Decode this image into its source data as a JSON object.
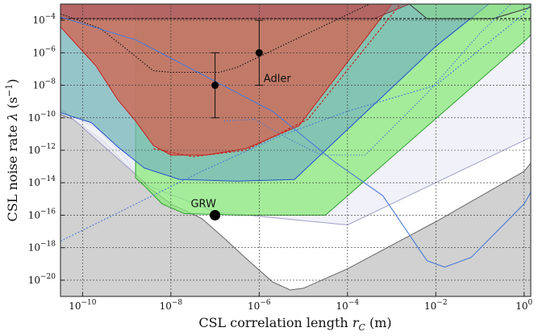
{
  "chart_data": {
    "type": "area",
    "xlabel": "CSL correlation length",
    "xlabel_symbol": "r",
    "xlabel_subscript": "C",
    "xlabel_unit": "(m)",
    "ylabel": "CSL noise rate",
    "ylabel_symbol": "λ",
    "ylabel_unit": "(s",
    "ylabel_unit_exp": "−1",
    "ylabel_unit_close": ")",
    "x_scale": "log",
    "y_scale": "log",
    "xlim_log10": [
      -10.5,
      0.15
    ],
    "ylim_log10": [
      -21,
      -3
    ],
    "x_ticks": [
      {
        "base": "10",
        "exp": "−10",
        "log": -10
      },
      {
        "base": "10",
        "exp": "−8",
        "log": -8
      },
      {
        "base": "10",
        "exp": "−6",
        "log": -6
      },
      {
        "base": "10",
        "exp": "−4",
        "log": -4
      },
      {
        "base": "10",
        "exp": "−2",
        "log": -2
      },
      {
        "base": "10",
        "exp": "0",
        "log": 0
      }
    ],
    "y_ticks": [
      {
        "base": "10",
        "exp": "−4",
        "log": -4
      },
      {
        "base": "10",
        "exp": "−6",
        "log": -6
      },
      {
        "base": "10",
        "exp": "−8",
        "log": -8
      },
      {
        "base": "10",
        "exp": "−10",
        "log": -10
      },
      {
        "base": "10",
        "exp": "−12",
        "log": -12
      },
      {
        "base": "10",
        "exp": "−14",
        "log": -14
      },
      {
        "base": "10",
        "exp": "−16",
        "log": -16
      },
      {
        "base": "10",
        "exp": "−18",
        "log": -18
      },
      {
        "base": "10",
        "exp": "−20",
        "log": -20
      }
    ],
    "grid": true,
    "regions": [
      {
        "id": "theory-excluded-gray",
        "fill": "#c9c9c9",
        "opacity": 0.85,
        "stroke": "#666666",
        "points": [
          [
            -10.5,
            -21
          ],
          [
            -10.5,
            -9.8
          ],
          [
            -10.2,
            -10.1
          ],
          [
            -9.5,
            -11.5
          ],
          [
            -9,
            -12.9
          ],
          [
            -8.5,
            -14.3
          ],
          [
            -8,
            -15.3
          ],
          [
            -7.3,
            -16.2
          ],
          [
            -6.8,
            -17.4
          ],
          [
            -6.2,
            -18.9
          ],
          [
            -5.7,
            -20.1
          ],
          [
            -5.3,
            -20.6
          ],
          [
            -5,
            -20.5
          ],
          [
            -4,
            -19.3
          ],
          [
            -2,
            -16.4
          ],
          [
            0,
            -13.3
          ],
          [
            0.15,
            -12.8
          ],
          [
            0.15,
            -21
          ]
        ]
      },
      {
        "id": "bound-steelblue-left",
        "fill": "#b9c9df",
        "opacity": 0.55,
        "stroke": "#6a8fc0",
        "points": [
          [
            -10.5,
            -3
          ],
          [
            -10.5,
            -9.6
          ],
          [
            -9.7,
            -10.6
          ],
          [
            -9,
            -12.6
          ],
          [
            -8.8,
            -13.4
          ],
          [
            -8.8,
            -3
          ]
        ]
      },
      {
        "id": "bound-lavender",
        "fill": "#eeeef8",
        "opacity": 0.85,
        "stroke": "#a0a0c8",
        "points": [
          [
            -10.5,
            -3
          ],
          [
            -10.5,
            -9.4
          ],
          [
            -8.5,
            -14.2
          ],
          [
            -7,
            -15.8
          ],
          [
            -4,
            -16.6
          ],
          [
            0.15,
            -11.2
          ],
          [
            0.15,
            -3
          ]
        ]
      },
      {
        "id": "bound-green",
        "fill": "#8aea7a",
        "opacity": 0.75,
        "stroke": "#2ca02c",
        "points": [
          [
            -8.8,
            -3
          ],
          [
            -8.8,
            -13.7
          ],
          [
            -8.6,
            -14.2
          ],
          [
            -8.2,
            -15.3
          ],
          [
            -7.7,
            -15.9
          ],
          [
            -6.5,
            -16.0
          ],
          [
            -4.5,
            -16.0
          ],
          [
            0,
            -5.3
          ],
          [
            0.15,
            -4.9
          ],
          [
            0.15,
            -3
          ]
        ]
      },
      {
        "id": "bound-teal",
        "fill": "#7ab7b9",
        "opacity": 0.75,
        "stroke": "#1f4fd1",
        "points": [
          [
            -10.5,
            -3
          ],
          [
            -10.5,
            -9.7
          ],
          [
            -9.8,
            -10.3
          ],
          [
            -9.2,
            -11.8
          ],
          [
            -8.6,
            -13.1
          ],
          [
            -7.8,
            -13.8
          ],
          [
            -6.5,
            -13.9
          ],
          [
            -5.2,
            -13.8
          ],
          [
            -2,
            -5.6
          ],
          [
            -0.8,
            -3
          ],
          [
            -0.8,
            -3
          ]
        ]
      },
      {
        "id": "bound-red",
        "fill": "#d06a58",
        "opacity": 0.82,
        "stroke": "#c81e1e",
        "points": [
          [
            -10.5,
            -3
          ],
          [
            -10.5,
            -4.4
          ],
          [
            -9.7,
            -6.8
          ],
          [
            -9.2,
            -8.9
          ],
          [
            -8.8,
            -10.2
          ],
          [
            -8.4,
            -11.7
          ],
          [
            -8,
            -12.3
          ],
          [
            -7.2,
            -12.3
          ],
          [
            -6.3,
            -11.9
          ],
          [
            -5.1,
            -10.5
          ],
          [
            -3,
            -3
          ],
          [
            -3,
            -3
          ]
        ]
      },
      {
        "id": "bound-wine-top",
        "fill": "#a85560",
        "opacity": 0.55,
        "stroke": "#8a3a48",
        "points": [
          [
            -10.5,
            -3
          ],
          [
            -10.5,
            -3.9
          ],
          [
            -3.4,
            -3.9
          ],
          [
            -2.6,
            -3
          ],
          [
            -2.6,
            -3
          ]
        ]
      },
      {
        "id": "bound-green-top",
        "fill": "#88d88c",
        "opacity": 0.55,
        "stroke": "#333333",
        "points": [
          [
            -2.6,
            -3
          ],
          [
            -2.2,
            -3.9
          ],
          [
            -0.7,
            -3.9
          ],
          [
            0.15,
            -3.2
          ],
          [
            0.15,
            -3
          ]
        ]
      }
    ],
    "lines": [
      {
        "id": "black-dotted",
        "stroke": "#111111",
        "dash": "1.5,2",
        "points": [
          [
            -10.5,
            -3.6
          ],
          [
            -9.6,
            -4.5
          ],
          [
            -8.9,
            -6.0
          ],
          [
            -8.4,
            -7.1
          ],
          [
            -8,
            -7.2
          ],
          [
            -6.9,
            -7.2
          ],
          [
            -6.5,
            -6.9
          ],
          [
            -5.2,
            -5.2
          ],
          [
            -3.5,
            -3
          ]
        ]
      },
      {
        "id": "black-dashed-flat",
        "stroke": "#111111",
        "dash": "3,2",
        "points": [
          [
            -10.5,
            -3.9
          ],
          [
            0.15,
            -3.9
          ]
        ]
      },
      {
        "id": "blue-long",
        "stroke": "#4a7bd6",
        "dash": "2,2",
        "points": [
          [
            -10.5,
            -17.6
          ],
          [
            -7.3,
            -13.3
          ],
          [
            -5.6,
            -11.2
          ],
          [
            -4,
            -9.6
          ],
          [
            -2,
            -8.0
          ],
          [
            0,
            -3.6
          ],
          [
            0.15,
            -3
          ]
        ]
      },
      {
        "id": "blue-diag",
        "stroke": "#4a7bd6",
        "dash": "",
        "points": [
          [
            -10.5,
            -3.8
          ],
          [
            -8.8,
            -5.2
          ],
          [
            -5.7,
            -9.6
          ],
          [
            -4.3,
            -12.7
          ],
          [
            -3.2,
            -14.8
          ],
          [
            -2.2,
            -18.8
          ],
          [
            -1.8,
            -19.2
          ],
          [
            -1.2,
            -18.6
          ],
          [
            0,
            -15.3
          ],
          [
            0.15,
            -14.6
          ]
        ]
      },
      {
        "id": "blue-bump",
        "stroke": "#4a7bd6",
        "dash": "1.5,2",
        "points": [
          [
            -6.8,
            -10.2
          ],
          [
            -6.1,
            -10.1
          ],
          [
            -5.4,
            -11.2
          ],
          [
            -4.6,
            -12.3
          ],
          [
            -3.6,
            -12.3
          ],
          [
            -2.2,
            -8.5
          ],
          [
            -1,
            -4.8
          ],
          [
            -0.3,
            -3
          ]
        ]
      },
      {
        "id": "red-dashed",
        "stroke": "#c81e1e",
        "dash": "3,2",
        "points": [
          [
            -8.4,
            -11.9
          ],
          [
            -7.5,
            -12.4
          ],
          [
            -6.3,
            -12.0
          ],
          [
            -4.9,
            -10.1
          ],
          [
            -2.8,
            -3
          ]
        ]
      }
    ],
    "points": [
      {
        "label": "GRW",
        "x_log10": -7,
        "y_log10": -16,
        "size": 6.5
      },
      {
        "label": "",
        "x_log10": -7,
        "y_log10": -8,
        "err_log10": [
          -10,
          -6
        ],
        "size": 4.5
      },
      {
        "label": "",
        "x_log10": -6,
        "y_log10": -6,
        "err_log10": [
          -8,
          -4
        ],
        "size": 4.5
      }
    ],
    "annotations": [
      {
        "text": "Adler",
        "x_log10": -5.9,
        "y_log10": -7.8
      },
      {
        "text": "GRW",
        "x_log10": -7.55,
        "y_log10": -15.5
      }
    ]
  }
}
